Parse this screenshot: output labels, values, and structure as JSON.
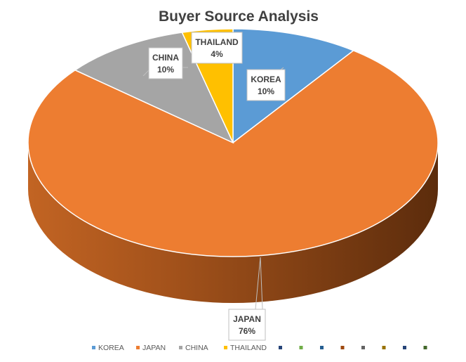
{
  "chart_data": {
    "type": "pie",
    "title": "Buyer Source Analysis",
    "categories": [
      "KOREA",
      "JAPAN",
      "CHINA",
      "THAILAND"
    ],
    "values": [
      10,
      76,
      10,
      4
    ],
    "value_labels": [
      "10%",
      "76%",
      "10%",
      "4%"
    ],
    "colors": [
      "#5b9bd5",
      "#ed7d31",
      "#a5a5a5",
      "#ffc000"
    ],
    "three_d": true,
    "legend": {
      "position": "bottom",
      "items": [
        "KOREA",
        "JAPAN",
        "CHINA",
        "THAILAND"
      ],
      "empty_marker_colors": [
        "#264478",
        "#70ad47",
        "#255e91",
        "#9e480e",
        "#636363",
        "#997300",
        "#264478",
        "#43682b"
      ]
    }
  }
}
